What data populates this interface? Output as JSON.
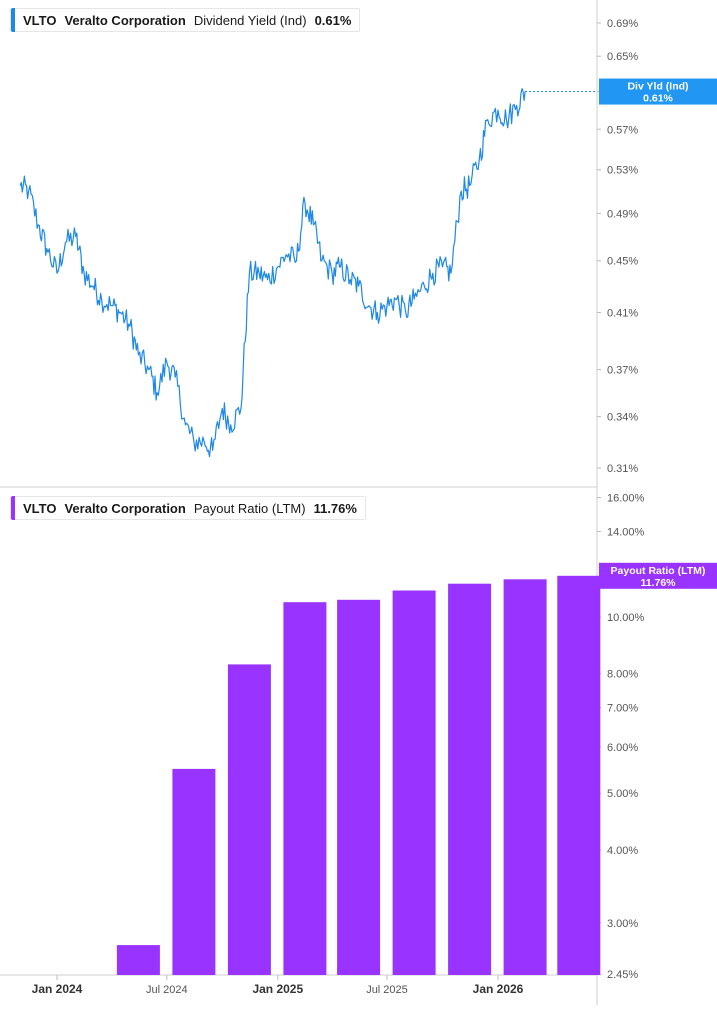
{
  "colors": {
    "yield_line": "#1e88e5",
    "yield_flag": "#2196f3",
    "payout_bar": "#9933ff",
    "payout_flag": "#9933ff",
    "grid": "#dcdcdc",
    "axis_text": "#555555"
  },
  "panels": {
    "top": {
      "ticker": "VLTO",
      "company": "Veralto Corporation",
      "metric": "Dividend Yield (Ind)",
      "value": "0.61%",
      "flag_label": "Div Yld (Ind)",
      "flag_value": "0.61%"
    },
    "bottom": {
      "ticker": "VLTO",
      "company": "Veralto Corporation",
      "metric": "Payout Ratio (LTM)",
      "value": "11.76%",
      "flag_label": "Payout Ratio (LTM)",
      "flag_value": "11.76%"
    }
  },
  "x_axis": {
    "ticks": [
      {
        "label": "Jan 2024",
        "date": "2024-01-01",
        "major": true
      },
      {
        "label": "Jul 2024",
        "date": "2024-07-01",
        "major": false
      },
      {
        "label": "Jan 2025",
        "date": "2025-01-01",
        "major": true
      },
      {
        "label": "Jul 2025",
        "date": "2025-07-01",
        "major": false
      },
      {
        "label": "Jan 2026",
        "date": "2026-01-01",
        "major": true
      }
    ]
  },
  "chart_data": [
    {
      "type": "line",
      "title": "VLTO Veralto Corporation Dividend Yield (Ind)",
      "series": [
        {
          "name": "Div Yld (Ind)",
          "x": [
            "2023-11-01",
            "2023-11-15",
            "2023-12-01",
            "2023-12-15",
            "2024-01-01",
            "2024-01-15",
            "2024-02-01",
            "2024-02-15",
            "2024-03-01",
            "2024-03-15",
            "2024-04-01",
            "2024-04-15",
            "2024-05-01",
            "2024-05-15",
            "2024-06-01",
            "2024-06-15",
            "2024-07-01",
            "2024-07-15",
            "2024-08-01",
            "2024-08-15",
            "2024-09-01",
            "2024-09-15",
            "2024-10-01",
            "2024-10-15",
            "2024-11-01",
            "2024-11-15",
            "2024-12-01",
            "2024-12-15",
            "2025-01-01",
            "2025-01-15",
            "2025-02-01",
            "2025-02-15",
            "2025-03-01",
            "2025-03-15",
            "2025-04-01",
            "2025-04-15",
            "2025-05-01",
            "2025-05-15",
            "2025-06-01",
            "2025-06-15",
            "2025-07-01",
            "2025-07-15",
            "2025-08-01",
            "2025-08-15",
            "2025-09-01",
            "2025-09-15",
            "2025-10-01",
            "2025-10-15",
            "2025-11-01",
            "2025-11-15",
            "2025-12-01",
            "2025-12-15",
            "2026-01-01",
            "2026-01-15",
            "2026-02-01",
            "2026-02-15"
          ],
          "values": [
            0.515,
            0.51,
            0.48,
            0.46,
            0.44,
            0.465,
            0.47,
            0.44,
            0.43,
            0.42,
            0.415,
            0.41,
            0.4,
            0.38,
            0.37,
            0.355,
            0.375,
            0.365,
            0.335,
            0.325,
            0.325,
            0.32,
            0.345,
            0.335,
            0.345,
            0.44,
            0.44,
            0.435,
            0.445,
            0.455,
            0.45,
            0.5,
            0.48,
            0.45,
            0.44,
            0.445,
            0.435,
            0.43,
            0.415,
            0.41,
            0.415,
            0.42,
            0.41,
            0.42,
            0.43,
            0.44,
            0.445,
            0.44,
            0.51,
            0.515,
            0.54,
            0.58,
            0.59,
            0.58,
            0.595,
            0.61
          ]
        }
      ],
      "ylim": [
        0.3,
        0.72
      ],
      "y_scale": "log",
      "y_ticks": [
        "0.31%",
        "0.34%",
        "0.37%",
        "0.41%",
        "0.45%",
        "0.49%",
        "0.53%",
        "0.57%",
        "0.61%",
        "0.65%",
        "0.69%"
      ],
      "grid": false,
      "legend": "top-left"
    },
    {
      "type": "bar",
      "title": "VLTO Veralto Corporation Payout Ratio (LTM)",
      "series": [
        {
          "name": "Payout Ratio (LTM)",
          "x": [
            "2024-05-15",
            "2024-08-15",
            "2024-11-15",
            "2025-02-15",
            "2025-05-15",
            "2025-08-15",
            "2025-11-15",
            "2026-02-15",
            "2026-05-15"
          ],
          "values": [
            2.75,
            5.5,
            8.3,
            10.6,
            10.7,
            11.1,
            11.4,
            11.6,
            11.76
          ]
        }
      ],
      "ylim": [
        2.45,
        17.5
      ],
      "y_scale": "log",
      "y_ticks": [
        "2.45%",
        "3.00%",
        "4.00%",
        "5.00%",
        "6.00%",
        "7.00%",
        "8.00%",
        "10.00%",
        "14.00%",
        "16.00%"
      ],
      "grid": false,
      "legend": "top-left"
    }
  ]
}
